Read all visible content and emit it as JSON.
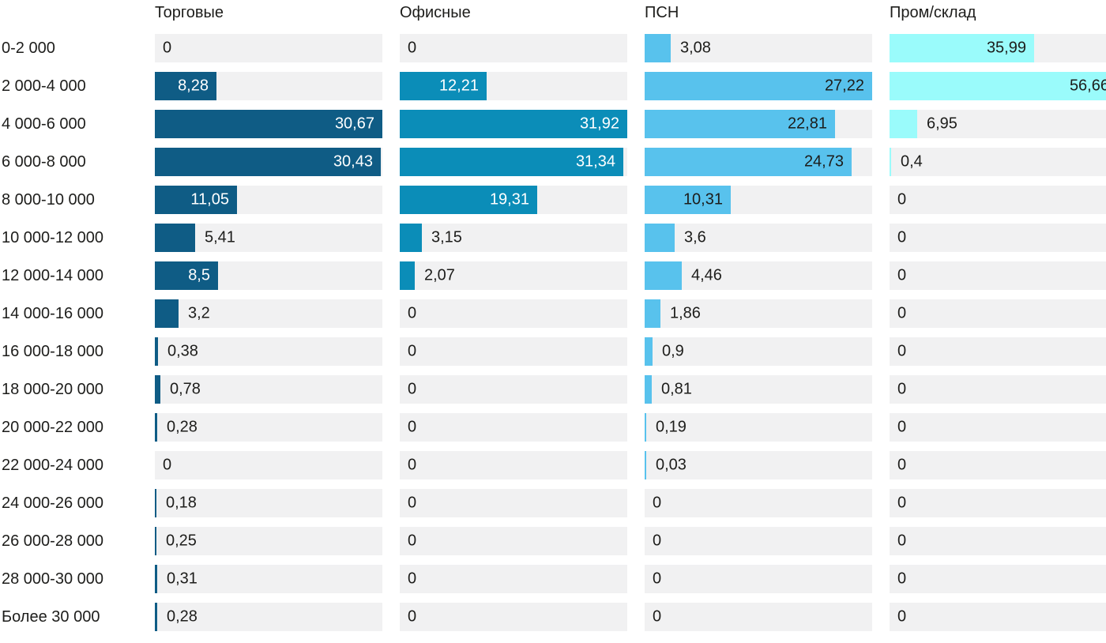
{
  "chart_data": {
    "type": "bar",
    "orientation": "horizontal",
    "scaling": "per-column-max",
    "grid": "off",
    "decimal_separator": ",",
    "track_color": "#f1f1f2",
    "text_color": "#1d1d1b",
    "categories": [
      "0-2 000",
      "2 000-4 000",
      "4 000-6 000",
      "6 000-8 000",
      "8 000-10 000",
      "10 000-12 000",
      "12 000-14 000",
      "14 000-16 000",
      "16 000-18 000",
      "18 000-20 000",
      "20 000-22 000",
      "22 000-24 000",
      "24 000-26 000",
      "26 000-28 000",
      "28 000-30 000",
      "Более 30 000"
    ],
    "series": [
      {
        "name": "Торговые",
        "color": "#0f5c85",
        "label_color_inside": "#ffffff",
        "max": 30.67,
        "values": [
          0,
          8.28,
          30.67,
          30.43,
          11.05,
          5.41,
          8.5,
          3.2,
          0.38,
          0.78,
          0.28,
          0,
          0.18,
          0.25,
          0.31,
          0.28
        ]
      },
      {
        "name": "Офисные",
        "color": "#0b8db8",
        "label_color_inside": "#ffffff",
        "max": 31.92,
        "values": [
          0,
          12.21,
          31.92,
          31.34,
          19.31,
          3.15,
          2.07,
          0,
          0,
          0,
          0,
          0,
          0,
          0,
          0,
          0
        ]
      },
      {
        "name": "ПСН",
        "color": "#58c2ed",
        "label_color_inside": "#1d1d1b",
        "max": 27.22,
        "values": [
          3.08,
          27.22,
          22.81,
          24.73,
          10.31,
          3.6,
          4.46,
          1.86,
          0.9,
          0.81,
          0.19,
          0.03,
          0,
          0,
          0,
          0
        ]
      },
      {
        "name": "Пром/склад",
        "color": "#9afbfb",
        "label_color_inside": "#1d1d1b",
        "max": 56.66,
        "values": [
          35.99,
          56.66,
          6.95,
          0.4,
          0,
          0,
          0,
          0,
          0,
          0,
          0,
          0,
          0,
          0,
          0,
          0
        ]
      }
    ]
  }
}
